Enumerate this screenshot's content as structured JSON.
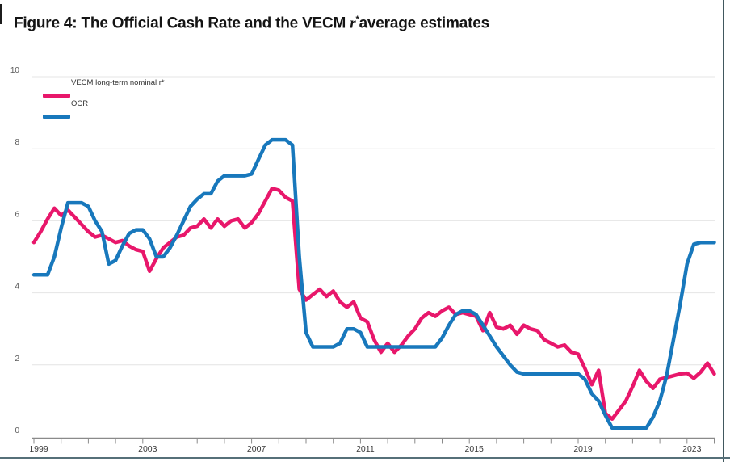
{
  "page": {
    "background": "#ffffff",
    "right_border_color": "#41585e",
    "bottom_border_color": "#567079"
  },
  "title": {
    "text_before_math": "Figure 4: The Official Cash Rate and the VECM ",
    "math_var": "r",
    "math_sup": "*",
    "text_after_math": "average estimates"
  },
  "legend": {
    "items": [
      {
        "label": "VECM long-term nominal r*",
        "color": "#e8176b"
      },
      {
        "label": "OCR",
        "color": "#1878bc"
      }
    ]
  },
  "chart_data": {
    "type": "line",
    "title": "Figure 4: The Official Cash Rate and the VECM r* average estimates",
    "grid": "horizontal",
    "legend_position": "top-left",
    "x_axis": {
      "start_year": 1999,
      "end_year": 2024,
      "step_years": 0.25,
      "tick_every_years": 1,
      "tick_label_years": [
        "1999",
        "2003",
        "2007",
        "2011",
        "2015",
        "2019",
        "2023"
      ]
    },
    "y_axis": {
      "range": [
        0,
        10
      ],
      "ticks": [
        0,
        2,
        4,
        6,
        8,
        10
      ]
    },
    "series": [
      {
        "name": "VECM long-term nominal r*",
        "color": "#e8176b",
        "frequency": "quarterly",
        "values": [
          5.4,
          5.7,
          6.05,
          6.35,
          6.15,
          6.3,
          6.1,
          5.9,
          5.7,
          5.55,
          5.6,
          5.5,
          5.4,
          5.45,
          5.3,
          5.2,
          5.15,
          4.6,
          4.95,
          5.25,
          5.4,
          5.55,
          5.6,
          5.8,
          5.85,
          6.05,
          5.8,
          6.05,
          5.85,
          6.0,
          6.05,
          5.8,
          5.95,
          6.2,
          6.55,
          6.9,
          6.85,
          6.65,
          6.55,
          4.1,
          3.8,
          3.95,
          4.1,
          3.9,
          4.05,
          3.75,
          3.6,
          3.75,
          3.3,
          3.2,
          2.7,
          2.35,
          2.6,
          2.35,
          2.55,
          2.8,
          3.0,
          3.3,
          3.45,
          3.35,
          3.5,
          3.6,
          3.4,
          3.45,
          3.4,
          3.35,
          2.95,
          3.45,
          3.05,
          3.0,
          3.1,
          2.85,
          3.1,
          3.0,
          2.95,
          2.7,
          2.6,
          2.5,
          2.55,
          2.35,
          2.3,
          1.9,
          1.45,
          1.85,
          0.65,
          0.5,
          0.75,
          1.0,
          1.4,
          1.85,
          1.55,
          1.35,
          1.6,
          1.65,
          1.7,
          1.75,
          1.77,
          1.63,
          1.8,
          2.05,
          1.75
        ]
      },
      {
        "name": "OCR",
        "color": "#1878bc",
        "frequency": "quarterly",
        "values": [
          4.5,
          4.5,
          4.5,
          5.0,
          5.8,
          6.5,
          6.5,
          6.5,
          6.4,
          6.0,
          5.7,
          4.8,
          4.9,
          5.3,
          5.65,
          5.75,
          5.75,
          5.5,
          5.0,
          5.0,
          5.25,
          5.6,
          6.0,
          6.4,
          6.6,
          6.75,
          6.75,
          7.1,
          7.25,
          7.25,
          7.25,
          7.25,
          7.3,
          7.7,
          8.1,
          8.25,
          8.25,
          8.25,
          8.1,
          5.0,
          2.9,
          2.5,
          2.5,
          2.5,
          2.5,
          2.6,
          3.0,
          3.0,
          2.9,
          2.5,
          2.5,
          2.5,
          2.5,
          2.5,
          2.5,
          2.5,
          2.5,
          2.5,
          2.5,
          2.5,
          2.75,
          3.1,
          3.4,
          3.5,
          3.5,
          3.4,
          3.1,
          2.8,
          2.5,
          2.25,
          2.0,
          1.8,
          1.75,
          1.75,
          1.75,
          1.75,
          1.75,
          1.75,
          1.75,
          1.75,
          1.75,
          1.6,
          1.2,
          1.0,
          0.6,
          0.25,
          0.25,
          0.25,
          0.25,
          0.25,
          0.25,
          0.55,
          1.0,
          1.7,
          2.7,
          3.7,
          4.8,
          5.35,
          5.4,
          5.4,
          5.4
        ]
      }
    ]
  }
}
